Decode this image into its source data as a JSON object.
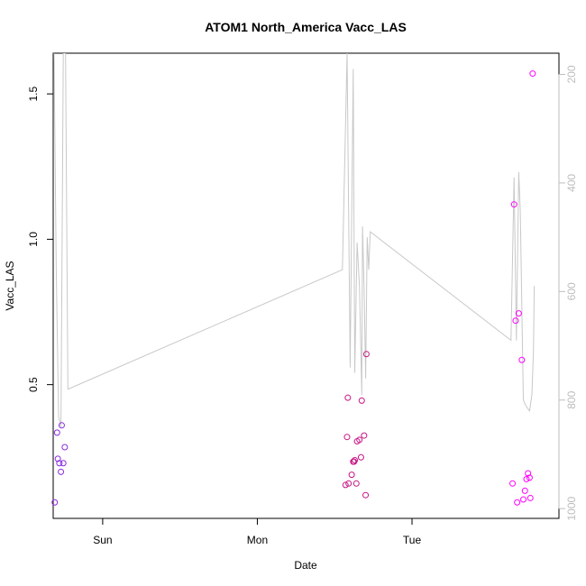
{
  "chart_data": {
    "type": "scatter",
    "title": "ATOM1 North_America Vacc_LAS",
    "xlabel": "Date",
    "ylabel": "Vacc_LAS",
    "x_ticks": [
      "Sun",
      "Mon",
      "Tue"
    ],
    "x_tick_positions": [
      1,
      2,
      3
    ],
    "xlim": [
      0.68,
      3.95
    ],
    "ylim": [
      0.04,
      1.64
    ],
    "y_ticks": [
      0.5,
      1.0,
      1.5
    ],
    "y_tick_labels": [
      "0.5",
      "1.0",
      "1.5"
    ],
    "right_axis": {
      "ticks": [
        200,
        400,
        600,
        800,
        1000
      ],
      "tick_labels": [
        "200",
        "400",
        "600",
        "800",
        "1000"
      ],
      "ylim": [
        1018,
        161
      ],
      "color": "#bdbdbd"
    },
    "grid": false,
    "points": [
      {
        "x": 0.69,
        "y": 0.095,
        "color": "#8a2be2"
      },
      {
        "x": 0.705,
        "y": 0.335,
        "color": "#8a2be2"
      },
      {
        "x": 0.71,
        "y": 0.245,
        "color": "#8a2be2"
      },
      {
        "x": 0.72,
        "y": 0.23,
        "color": "#8a2be2"
      },
      {
        "x": 0.73,
        "y": 0.2,
        "color": "#8a2be2"
      },
      {
        "x": 0.735,
        "y": 0.36,
        "color": "#8a2be2"
      },
      {
        "x": 0.745,
        "y": 0.23,
        "color": "#8a2be2"
      },
      {
        "x": 0.755,
        "y": 0.285,
        "color": "#8a2be2"
      },
      {
        "x": 2.57,
        "y": 0.155,
        "color": "#c71585"
      },
      {
        "x": 2.58,
        "y": 0.32,
        "color": "#c71585"
      },
      {
        "x": 2.585,
        "y": 0.455,
        "color": "#c71585"
      },
      {
        "x": 2.59,
        "y": 0.16,
        "color": "#c71585"
      },
      {
        "x": 2.61,
        "y": 0.19,
        "color": "#c71585"
      },
      {
        "x": 2.62,
        "y": 0.235,
        "color": "#c71585"
      },
      {
        "x": 2.625,
        "y": 0.235,
        "color": "#c71585"
      },
      {
        "x": 2.63,
        "y": 0.24,
        "color": "#c71585"
      },
      {
        "x": 2.64,
        "y": 0.16,
        "color": "#c71585"
      },
      {
        "x": 2.645,
        "y": 0.305,
        "color": "#c71585"
      },
      {
        "x": 2.66,
        "y": 0.31,
        "color": "#c71585"
      },
      {
        "x": 2.67,
        "y": 0.25,
        "color": "#c71585"
      },
      {
        "x": 2.675,
        "y": 0.445,
        "color": "#c71585"
      },
      {
        "x": 2.69,
        "y": 0.325,
        "color": "#c71585"
      },
      {
        "x": 2.7,
        "y": 0.12,
        "color": "#c71585"
      },
      {
        "x": 2.705,
        "y": 0.605,
        "color": "#c71585"
      },
      {
        "x": 3.65,
        "y": 0.16,
        "color": "#ff00ff"
      },
      {
        "x": 3.66,
        "y": 1.12,
        "color": "#ff00ff"
      },
      {
        "x": 3.67,
        "y": 0.72,
        "color": "#ff00ff"
      },
      {
        "x": 3.68,
        "y": 0.095,
        "color": "#ff00ff"
      },
      {
        "x": 3.69,
        "y": 0.745,
        "color": "#ff00ff"
      },
      {
        "x": 3.71,
        "y": 0.585,
        "color": "#ff00ff"
      },
      {
        "x": 3.72,
        "y": 0.105,
        "color": "#ff00ff"
      },
      {
        "x": 3.73,
        "y": 0.135,
        "color": "#ff00ff"
      },
      {
        "x": 3.74,
        "y": 0.175,
        "color": "#ff00ff"
      },
      {
        "x": 3.75,
        "y": 0.195,
        "color": "#ff00ff"
      },
      {
        "x": 3.76,
        "y": 0.18,
        "color": "#ff00ff"
      },
      {
        "x": 3.765,
        "y": 0.11,
        "color": "#ff00ff"
      },
      {
        "x": 3.78,
        "y": 1.57,
        "color": "#ff00ff"
      }
    ],
    "line_series": {
      "axis": "right",
      "color": "#c8c8c8",
      "x": [
        0.685,
        0.7,
        0.715,
        0.73,
        0.745,
        0.76,
        0.775,
        2.55,
        2.58,
        2.6,
        2.62,
        2.63,
        2.645,
        2.66,
        2.675,
        2.68,
        2.69,
        2.7,
        2.71,
        2.72,
        2.73,
        3.64,
        3.66,
        3.675,
        3.69,
        3.7,
        3.72,
        3.735,
        3.76,
        3.775,
        3.785,
        3.79
      ],
      "y": [
        161,
        560,
        830,
        850,
        161,
        161,
        780,
        560,
        161,
        740,
        190,
        750,
        510,
        590,
        790,
        480,
        590,
        760,
        500,
        560,
        490,
        690,
        390,
        690,
        380,
        450,
        800,
        810,
        820,
        790,
        710,
        590
      ]
    }
  }
}
